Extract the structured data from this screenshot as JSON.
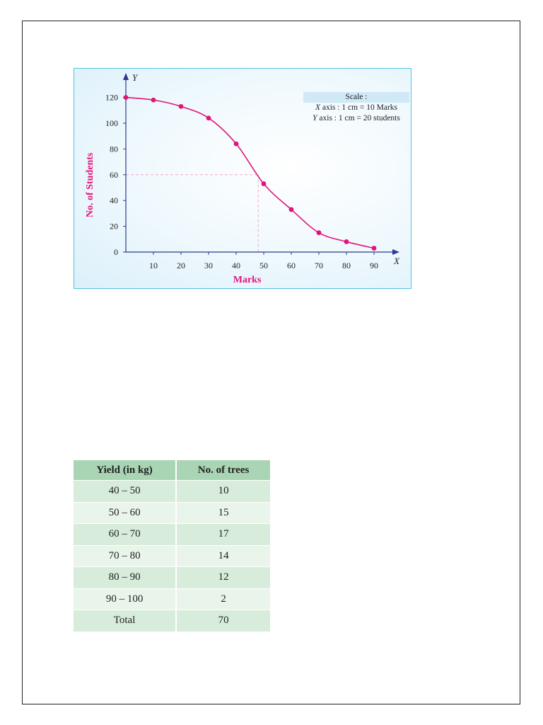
{
  "chart_data": {
    "type": "line",
    "xlabel": "Marks",
    "ylabel": "No. of Students",
    "x_axis_letter": "X",
    "y_axis_letter": "Y",
    "x_ticks": [
      10,
      20,
      30,
      40,
      50,
      60,
      70,
      80,
      90
    ],
    "y_ticks": [
      0,
      20,
      40,
      60,
      80,
      100,
      120
    ],
    "xlim": [
      0,
      100
    ],
    "ylim": [
      0,
      130
    ],
    "series": [
      {
        "x": [
          0,
          10,
          20,
          30,
          40,
          50,
          60,
          70,
          80,
          90
        ],
        "y": [
          120,
          118,
          113,
          104,
          84,
          53,
          33,
          15,
          8,
          3
        ],
        "color": "#e0147a"
      }
    ],
    "guide_point": {
      "x": 48,
      "y": 60
    },
    "grid": false,
    "scale_note": {
      "title": "Scale :",
      "x_prefix": "X",
      "x_text": " axis : 1 cm = 10 Marks",
      "y_prefix": "Y",
      "y_text": " axis : 1 cm = 20 students"
    }
  },
  "table": {
    "headers": [
      "Yield (in kg)",
      "No. of trees"
    ],
    "rows": [
      [
        "40 – 50",
        "10"
      ],
      [
        "50 – 60",
        "15"
      ],
      [
        "60 – 70",
        "17"
      ],
      [
        "70 – 80",
        "14"
      ],
      [
        "80 – 90",
        "12"
      ],
      [
        "90 – 100",
        "2"
      ],
      [
        "Total",
        "70"
      ]
    ]
  }
}
